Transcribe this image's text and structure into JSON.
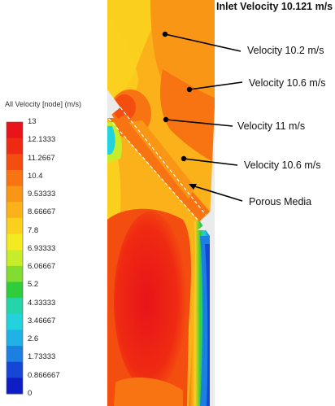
{
  "heading": "Inlet Velocity 10.121 m/s",
  "legend": {
    "title": "All Velocity [node] (m/s)",
    "ticks": [
      "13",
      "12.1333",
      "11.2667",
      "10.4",
      "9.53333",
      "8.66667",
      "7.8",
      "6.93333",
      "6.06667",
      "5.2",
      "4.33333",
      "3.46667",
      "2.6",
      "1.73333",
      "0.866667",
      "0"
    ],
    "colors": [
      "#e8141a",
      "#ef2a12",
      "#f44d10",
      "#f87412",
      "#fa9616",
      "#fbb21a",
      "#fbcf1e",
      "#f4ea22",
      "#c6ec2a",
      "#82dd30",
      "#2fcd3a",
      "#25d4a8",
      "#22d2dc",
      "#20b2e6",
      "#1c80e2",
      "#1646d6",
      "#0e1ec4"
    ]
  },
  "callouts": [
    {
      "label": "Velocity 10.2 m/s"
    },
    {
      "label": "Velocity 10.6 m/s"
    },
    {
      "label": "Velocity 11 m/s"
    },
    {
      "label": "Velocity 10.6 m/s"
    },
    {
      "label": "Porous Media"
    }
  ],
  "colors": {
    "text": "#111111",
    "leader": "#000000",
    "wall_background": "#ebebeb",
    "porous_outline": "#ffffff"
  }
}
